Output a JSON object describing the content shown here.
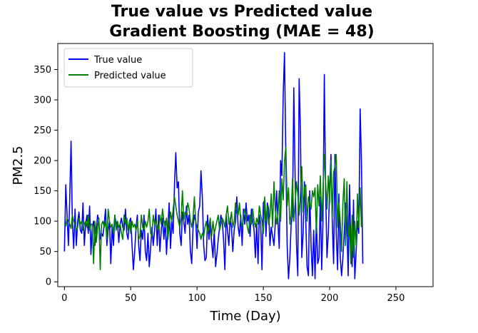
{
  "chart_data": {
    "type": "line",
    "title": "True value vs Predicted value",
    "subtitle": "Gradient Boosting (MAE = 48)",
    "xlabel": "Time (Day)",
    "ylabel": "PM2.5",
    "xlim": [
      -5,
      278
    ],
    "ylim": [
      -8,
      393
    ],
    "xticks": [
      0,
      50,
      100,
      150,
      200,
      250
    ],
    "yticks": [
      0,
      50,
      100,
      150,
      200,
      250,
      300,
      350
    ],
    "grid": false,
    "legend_position": "top-left",
    "series": [
      {
        "name": "True value",
        "color": "#0000ff",
        "values": [
          50,
          160,
          110,
          60,
          135,
          232,
          100,
          55,
          120,
          60,
          100,
          115,
          85,
          80,
          130,
          60,
          95,
          110,
          80,
          125,
          45,
          90,
          100,
          60,
          85,
          110,
          100,
          70,
          80,
          75,
          95,
          120,
          60,
          85,
          100,
          30,
          90,
          60,
          110,
          95,
          100,
          65,
          95,
          105,
          90,
          85,
          120,
          80,
          70,
          100,
          105,
          60,
          20,
          50,
          90,
          110,
          60,
          35,
          85,
          70,
          110,
          50,
          35,
          80,
          25,
          55,
          90,
          60,
          85,
          120,
          60,
          110,
          50,
          85,
          105,
          70,
          100,
          45,
          90,
          130,
          55,
          100,
          80,
          160,
          213,
          155,
          165,
          80,
          60,
          115,
          100,
          80,
          125,
          95,
          110,
          50,
          30,
          90,
          110,
          100,
          55,
          115,
          125,
          183,
          140,
          60,
          35,
          40,
          110,
          70,
          95,
          65,
          40,
          85,
          25,
          45,
          70,
          90,
          110,
          100,
          70,
          20,
          110,
          85,
          60,
          105,
          90,
          50,
          85,
          100,
          140,
          90,
          75,
          110,
          60,
          120,
          95,
          130,
          100,
          110,
          75,
          120,
          100,
          85,
          40,
          95,
          30,
          110,
          95,
          20,
          130,
          135,
          75,
          130,
          120,
          60,
          90,
          75,
          60,
          95,
          150,
          100,
          55,
          200,
          175,
          310,
          378,
          200,
          60,
          5,
          40,
          95,
          110,
          320,
          170,
          60,
          10,
          335,
          250,
          40,
          80,
          165,
          100,
          25,
          10,
          150,
          60,
          10,
          85,
          5,
          105,
          30,
          40,
          140,
          20,
          100,
          342,
          150,
          40,
          80,
          150,
          210,
          100,
          30,
          210,
          80,
          20,
          145,
          40,
          10,
          40,
          80,
          130,
          95,
          10,
          160,
          60,
          25,
          135,
          5,
          50,
          100,
          80,
          285,
          200,
          30
        ]
      },
      {
        "name": "Predicted value",
        "color": "#008000",
        "values": [
          95,
          92,
          105,
          100,
          95,
          88,
          110,
          100,
          95,
          85,
          90,
          105,
          95,
          100,
          85,
          95,
          100,
          90,
          110,
          85,
          95,
          95,
          30,
          100,
          65,
          90,
          105,
          20,
          95,
          100,
          90,
          100,
          70,
          120,
          100,
          90,
          95,
          80,
          110,
          85,
          100,
          90,
          95,
          80,
          70,
          110,
          95,
          105,
          85,
          100,
          80,
          100,
          90,
          95,
          85,
          100,
          70,
          75,
          110,
          90,
          85,
          100,
          90,
          100,
          120,
          80,
          75,
          110,
          95,
          100,
          90,
          85,
          110,
          95,
          120,
          100,
          90,
          105,
          70,
          95,
          115,
          100,
          120,
          140,
          125,
          110,
          100,
          90,
          105,
          150,
          100,
          115,
          110,
          130,
          120,
          100,
          90,
          105,
          140,
          100,
          90,
          85,
          80,
          70,
          80,
          75,
          90,
          100,
          80,
          90,
          105,
          75,
          100,
          80,
          90,
          100,
          110,
          85,
          95,
          105,
          100,
          90,
          110,
          125,
          95,
          100,
          115,
          90,
          100,
          130,
          115,
          110,
          130,
          100,
          90,
          110,
          120,
          105,
          90,
          80,
          110,
          95,
          120,
          100,
          90,
          105,
          95,
          125,
          110,
          100,
          80,
          140,
          100,
          125,
          95,
          110,
          145,
          90,
          165,
          120,
          95,
          110,
          150,
          100,
          170,
          135,
          200,
          222,
          125,
          155,
          95,
          110,
          170,
          100,
          130,
          165,
          145,
          110,
          145,
          190,
          115,
          155,
          160,
          100,
          140,
          130,
          120,
          150,
          140,
          155,
          80,
          160,
          125,
          175,
          100,
          150,
          210,
          165,
          120,
          175,
          130,
          200,
          105,
          180,
          190,
          210,
          90,
          130,
          100,
          50,
          130,
          170,
          60,
          165,
          75,
          95,
          30,
          110,
          40,
          100,
          60,
          145,
          90,
          155,
          90
        ]
      }
    ]
  }
}
